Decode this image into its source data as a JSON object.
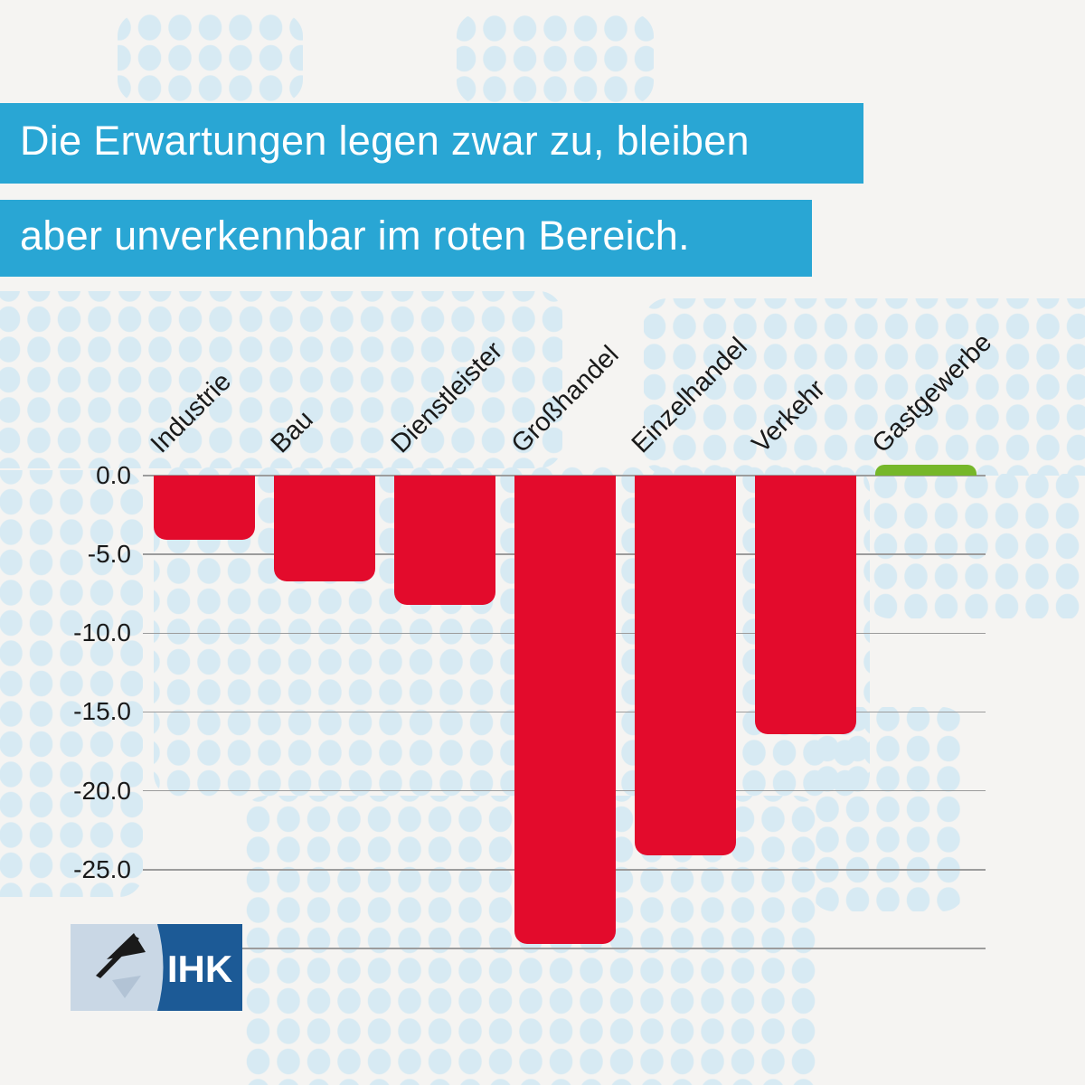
{
  "headline": {
    "line1": "Die Erwartungen legen zwar zu, bleiben",
    "line2": "aber unverkennbar im roten Bereich."
  },
  "chart_data": {
    "type": "bar",
    "categories": [
      "Industrie",
      "Bau",
      "Dienstleister",
      "Großhandel",
      "Einzelhandel",
      "Verkehr",
      "Gastgewerbe"
    ],
    "values": [
      -4.1,
      -6.7,
      -8.2,
      -29.7,
      -24.1,
      -16.4,
      0.7
    ],
    "title": "",
    "xlabel": "",
    "ylabel": "",
    "ylim": [
      -30.5,
      1.5
    ],
    "grid": "horizontal",
    "legend": null,
    "y_ticks": [
      {
        "value": 0,
        "label": "0.0"
      },
      {
        "value": -5,
        "label": "-5.0"
      },
      {
        "value": -10,
        "label": "-10.0"
      },
      {
        "value": -15,
        "label": "-15.0"
      },
      {
        "value": -20,
        "label": "-20.0"
      },
      {
        "value": -25,
        "label": "-25.0"
      },
      {
        "value": -30,
        "label": ""
      }
    ],
    "negative_color": "#e30b2c",
    "positive_color": "#76b72a"
  },
  "logo": {
    "brand": "IHK",
    "icon": "flag-pennant-icon"
  },
  "colors": {
    "background": "#f5f4f2",
    "banner_bg": "#29a6d4",
    "banner_text": "#ffffff",
    "map_dots": "#d7eaf3",
    "gridline": "#9c9c9c",
    "axis_text": "#1a1a1a",
    "logo_light": "#c9d7e5",
    "logo_dark": "#1c5a96"
  }
}
